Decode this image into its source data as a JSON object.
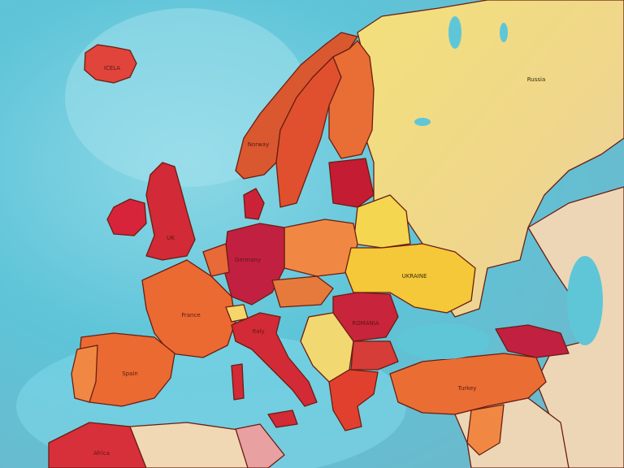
{
  "map": {
    "labels": {
      "iceland": "ICELA",
      "norway": "Norway",
      "uk": "UK",
      "germany": "Germany",
      "russia_lbl": "Russia",
      "ukraine": "UKRAINE",
      "romania": "ROMANIA",
      "spain": "Spain",
      "france": "France",
      "italy": "Italy",
      "turkey": "Turkey",
      "africa": "Africa"
    },
    "colors": {
      "sea": "#5fc6d8",
      "red": "#d4283a",
      "orange": "#ea6a32",
      "light_orange": "#f08844",
      "yellow": "#f4d24e",
      "pale_yellow": "#f2dc78",
      "crimson": "#c22040",
      "beige": "#f0d8b4"
    }
  }
}
